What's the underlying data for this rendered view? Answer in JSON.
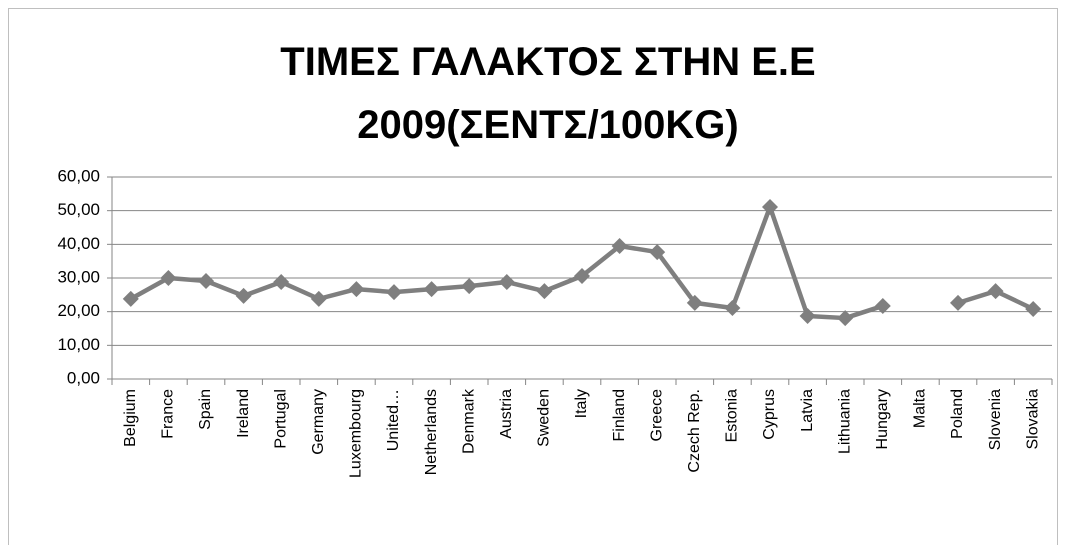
{
  "chart_data": {
    "type": "line",
    "title": [
      "ΤΙΜΕΣ ΓΑΛΑΚΤΟΣ ΣΤΗΝ Ε.Ε",
      "2009(ΣΕΝΤΣ/100KG)"
    ],
    "categories": [
      "Belgium",
      "France",
      "Spain",
      "Ireland",
      "Portugal",
      "Germany",
      "Luxembourg",
      "United…",
      "Netherlands",
      "Denmark",
      "Austria",
      "Sweden",
      "Italy",
      "Finland",
      "Greece",
      "Czech Rep.",
      "Estonia",
      "Cyprus",
      "Latvia",
      "Lithuania",
      "Hungary",
      "Malta",
      "Poland",
      "Slovenia",
      "Slovakia"
    ],
    "values": [
      23.8,
      30.0,
      29.1,
      24.7,
      28.8,
      23.8,
      26.7,
      25.8,
      26.7,
      27.6,
      28.8,
      26.1,
      30.6,
      39.5,
      37.7,
      22.6,
      21.1,
      51.1,
      18.7,
      18.1,
      21.7,
      null,
      22.6,
      26.1,
      20.8
    ],
    "color": "#7f7f7f",
    "ylim": [
      0,
      60
    ],
    "yticks": [
      {
        "value": 0,
        "label": "0,00"
      },
      {
        "value": 10,
        "label": "10,00"
      },
      {
        "value": 20,
        "label": "20,00"
      },
      {
        "value": 30,
        "label": "30,00"
      },
      {
        "value": 40,
        "label": "40,00"
      },
      {
        "value": 50,
        "label": "50,00"
      },
      {
        "value": 60,
        "label": "60,00"
      }
    ],
    "grid": true
  }
}
